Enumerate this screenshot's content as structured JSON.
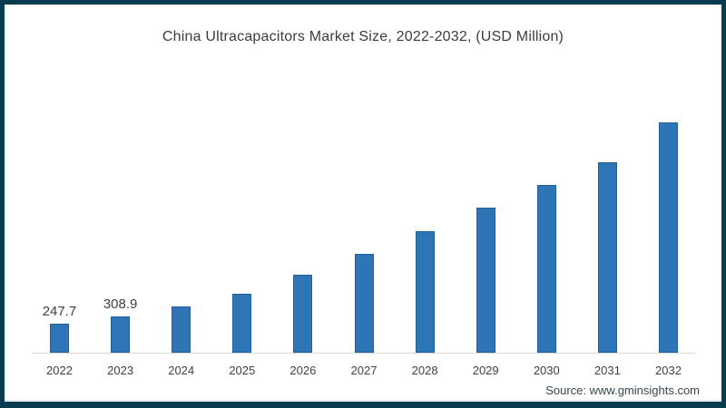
{
  "frame": {
    "border_color": "#0a3b50",
    "background_color": "#ffffff"
  },
  "chart_data": {
    "type": "bar",
    "title": "China Ultracapacitors Market Size, 2022-2032, (USD Million)",
    "categories": [
      "2022",
      "2023",
      "2024",
      "2025",
      "2026",
      "2027",
      "2028",
      "2029",
      "2030",
      "2031",
      "2032"
    ],
    "values": [
      247.7,
      308.9,
      393,
      508,
      665,
      846,
      1040,
      1242,
      1436,
      1630,
      1971
    ],
    "data_labels": [
      "247.7",
      "308.9",
      "",
      "",
      "",
      "",
      "",
      "",
      "",
      "",
      ""
    ],
    "xlabel": "",
    "ylabel": "",
    "ylim": [
      0,
      2100
    ],
    "grid": false,
    "legend": false,
    "bar_color": "#2e75b6",
    "axis_line_color": "#d9d9d9"
  },
  "footer": {
    "source_label": "Source: www.gminsights.com"
  }
}
